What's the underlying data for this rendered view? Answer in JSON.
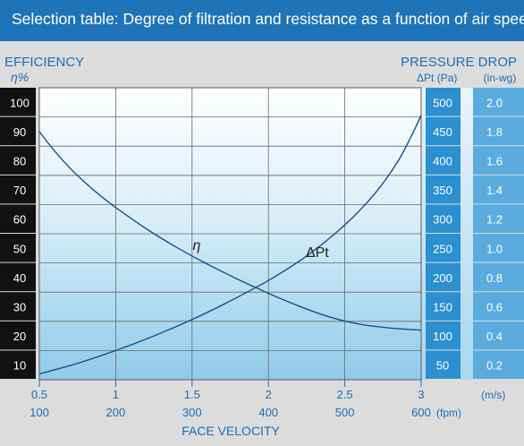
{
  "title": "Selection table: Degree of filtration and resistance as a function of air speed.",
  "colors": {
    "banner": "#1f74b8",
    "accent_text": "#1d6fb5",
    "efficiency_scale_bg": "#111111",
    "pressure_scale_pa_bg": "#2b8fd0",
    "pressure_scale_inwg_bg": "#5aacdf",
    "curve": "#1a4f8a"
  },
  "chart_data": {
    "type": "line",
    "title": "Selection table: Degree of filtration and resistance as a function of air speed.",
    "xlabel": "FACE VELOCITY",
    "x_units": [
      "(m/s)",
      "(fpm)"
    ],
    "x_ticks_ms": [
      "0.5",
      "1",
      "1.5",
      "2",
      "2.5",
      "3"
    ],
    "x_ticks_fpm": [
      "100",
      "200",
      "300",
      "400",
      "500",
      "600"
    ],
    "xlim": [
      0.5,
      3.0
    ],
    "left_axis": {
      "label": "EFFICIENCY",
      "symbol": "η%",
      "ticks": [
        "100",
        "90",
        "80",
        "70",
        "60",
        "50",
        "40",
        "30",
        "20",
        "10"
      ],
      "ylim": [
        5,
        105
      ]
    },
    "right_axis": {
      "label": "PRESSURE DROP",
      "pa_header": "ΔPt (Pa)",
      "inwg_header": "(in-wg)",
      "ticks_pa": [
        "500",
        "450",
        "400",
        "350",
        "300",
        "250",
        "200",
        "150",
        "100",
        "50"
      ],
      "ticks_inwg": [
        "2.0",
        "1.8",
        "1.6",
        "1.4",
        "1.2",
        "1.0",
        "0.8",
        "0.6",
        "0.4",
        "0.2"
      ],
      "ylim": [
        25,
        525
      ]
    },
    "grid": true,
    "series": [
      {
        "name": "η",
        "axis": "left",
        "x": [
          0.5,
          0.6,
          0.7,
          0.8,
          0.9,
          1.0,
          1.2,
          1.4,
          1.6,
          1.8,
          2.0,
          2.2,
          2.4,
          2.6,
          2.8,
          3.0
        ],
        "y": [
          90,
          83.3,
          77.5,
          72.5,
          68,
          64,
          56.7,
          50.3,
          44.6,
          39.4,
          34.6,
          30.2,
          26.5,
          24,
          22.7,
          22
        ]
      },
      {
        "name": "ΔPt",
        "axis": "right",
        "x": [
          0.5,
          0.75,
          1.0,
          1.25,
          1.5,
          1.75,
          2.0,
          2.25,
          2.5,
          2.7,
          2.85,
          2.95,
          3.0
        ],
        "y": [
          35,
          53,
          75,
          100,
          128,
          160,
          195,
          237,
          290,
          345,
          400,
          450,
          478
        ]
      }
    ]
  }
}
